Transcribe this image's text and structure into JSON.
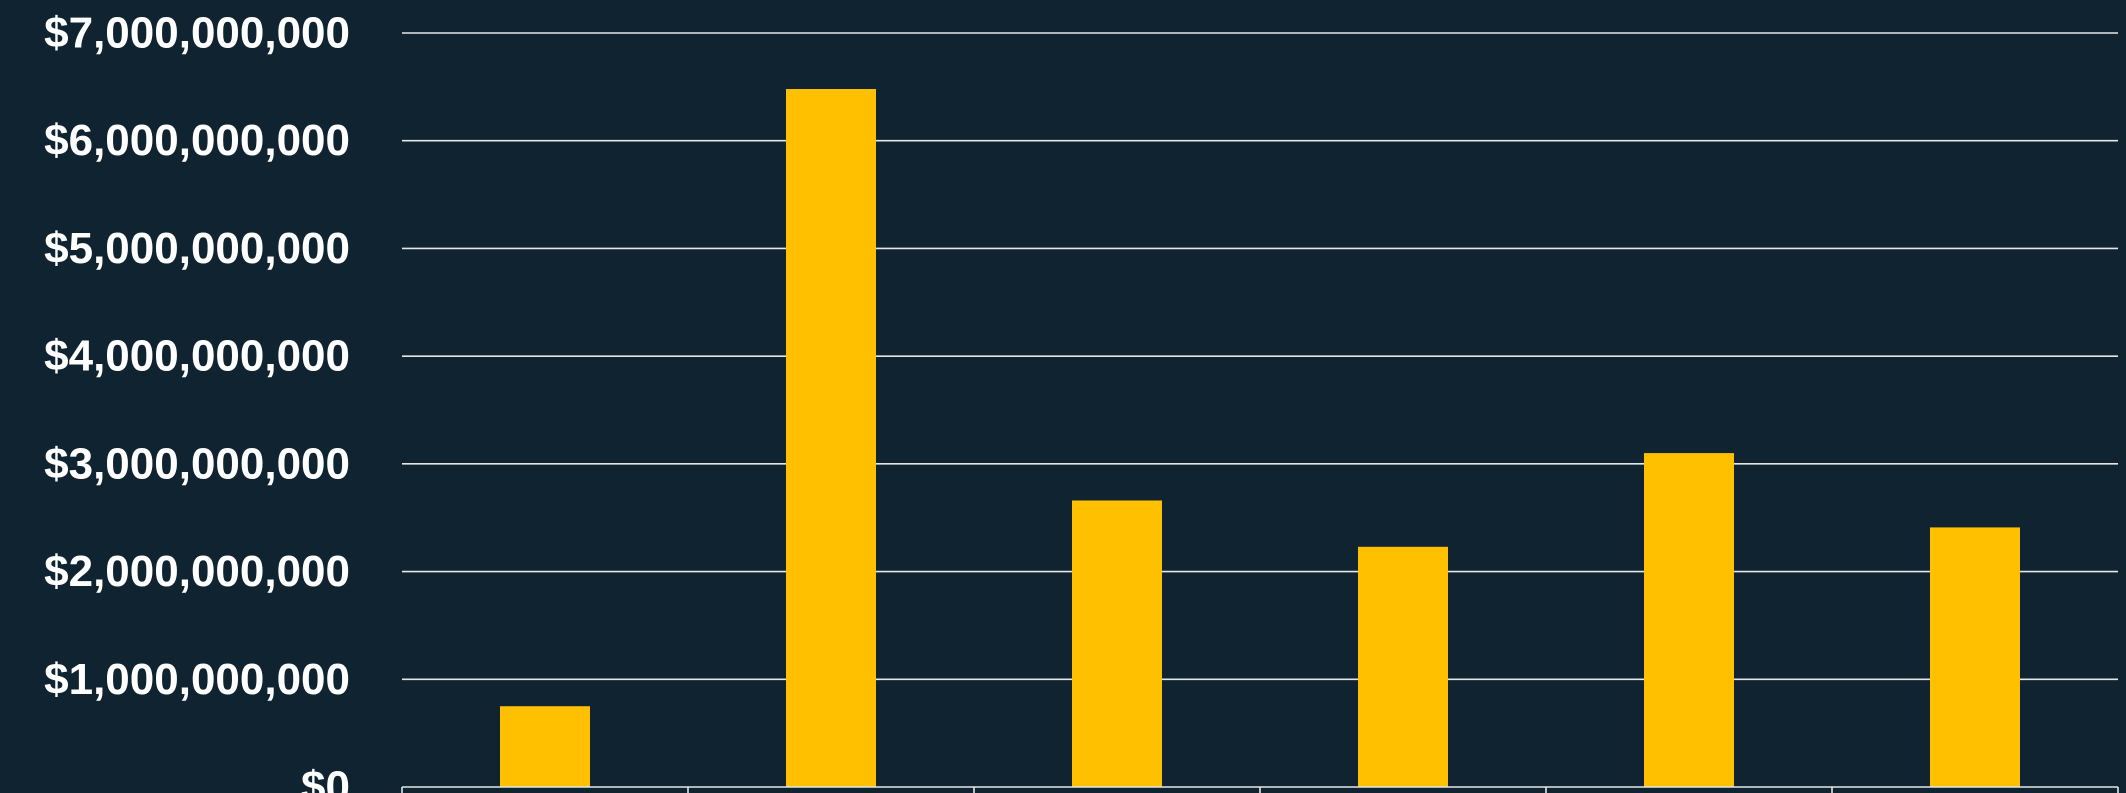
{
  "colors": {
    "background": "#0f2330",
    "bar": "#ffc000",
    "gridline": "#e6e6e6",
    "text": "#ffffff"
  },
  "chart_data": {
    "type": "bar",
    "categories": [
      "",
      "",
      "",
      "",
      "",
      ""
    ],
    "values": [
      750000000,
      6480000000,
      2660000000,
      2230000000,
      3100000000,
      2410000000
    ],
    "title": "",
    "xlabel": "",
    "ylabel": "",
    "ylim": [
      0,
      7000000000
    ],
    "yticks": [
      0,
      1000000000,
      2000000000,
      3000000000,
      4000000000,
      5000000000,
      6000000000,
      7000000000
    ],
    "ytick_labels": [
      "$0",
      "$1,000,000,000",
      "$2,000,000,000",
      "$3,000,000,000",
      "$4,000,000,000",
      "$5,000,000,000",
      "$6,000,000,000",
      "$7,000,000,000"
    ],
    "grid": true,
    "legend": "none"
  }
}
